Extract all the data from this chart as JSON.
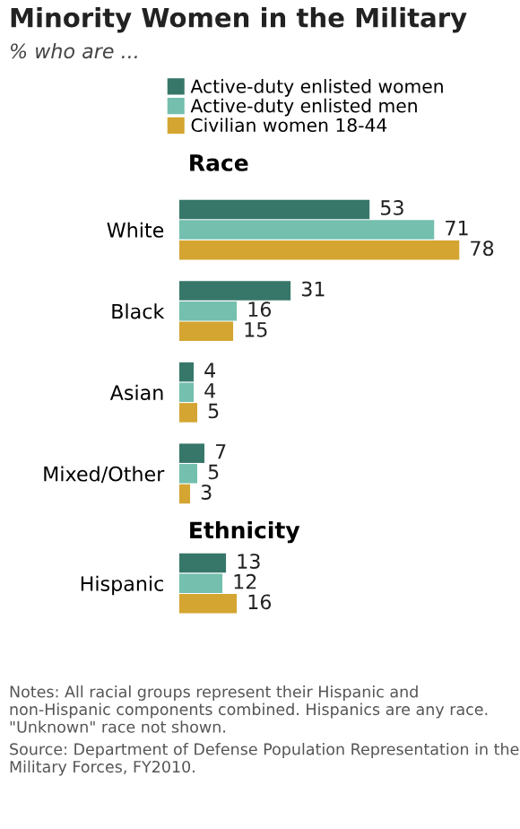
{
  "chart_data": {
    "type": "bar",
    "orientation": "horizontal",
    "title": "Minority Women in the Military",
    "subtitle": "% who are ...",
    "categories": [
      "White",
      "Black",
      "Asian",
      "Mixed/Other",
      "Hispanic"
    ],
    "series": [
      {
        "name": "Active-duty enlisted women",
        "color": "#36776a",
        "values": [
          53,
          31,
          4,
          7,
          13
        ]
      },
      {
        "name": "Active-duty enlisted men",
        "color": "#74bfae",
        "values": [
          71,
          16,
          4,
          5,
          12
        ]
      },
      {
        "name": "Civilian women 18-44",
        "color": "#d4a531",
        "values": [
          78,
          15,
          5,
          3,
          16
        ]
      }
    ],
    "data_labels": true,
    "legend": "top",
    "annotations": [
      "Race",
      "Ethnicity",
      "Notes: All racial groups represent their Hispanic and non-Hispanic components combined. Hispanics are any race. \"Unknown\" race not shown.",
      "Source: Department of Defense Population Representation in the Military Forces, FY2010."
    ]
  }
}
